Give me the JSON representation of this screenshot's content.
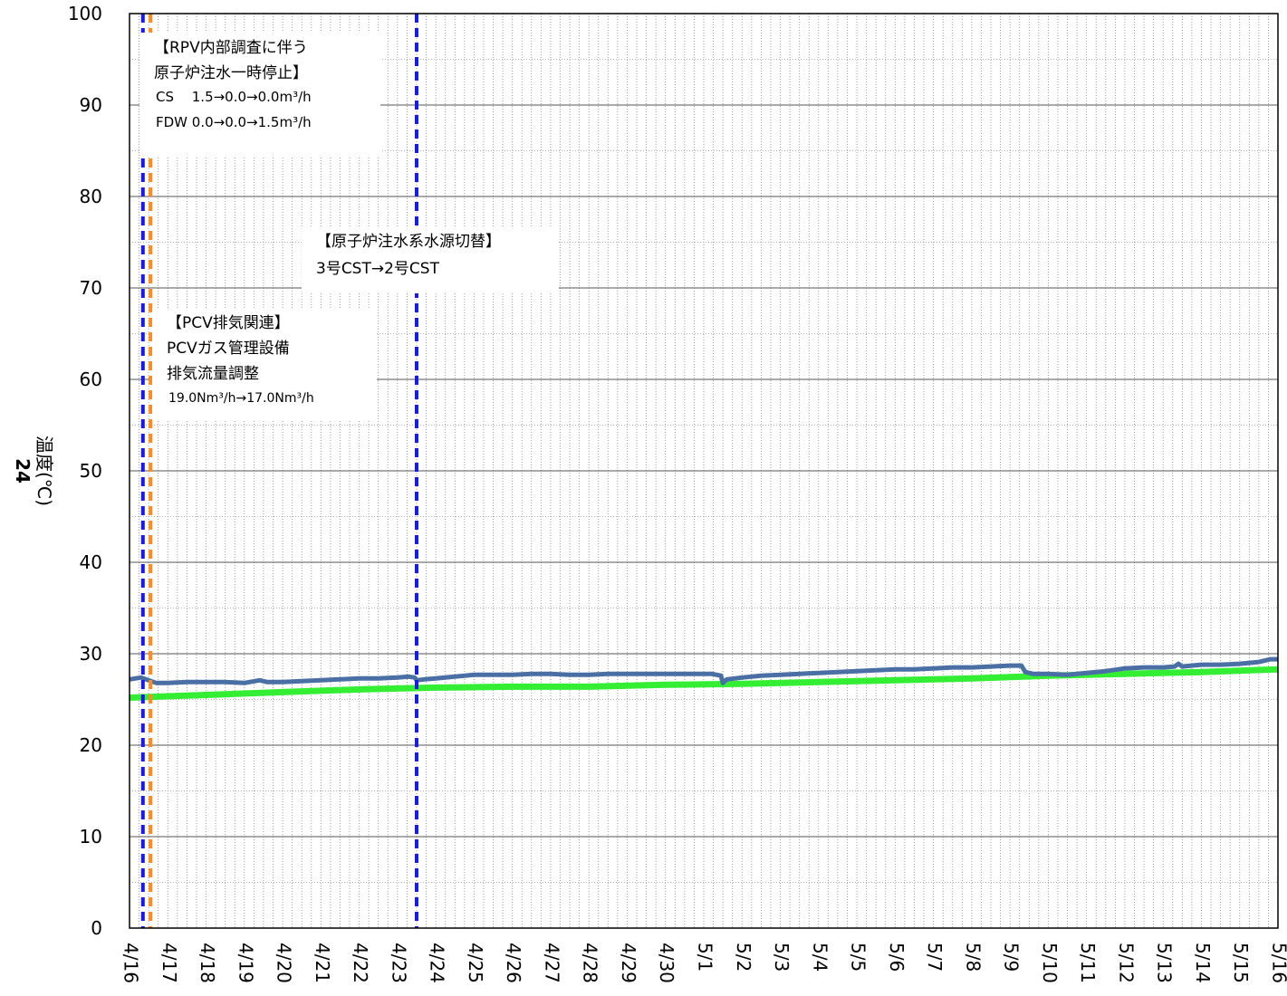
{
  "chart_data": {
    "type": "line",
    "title": "",
    "ylabel": "温度(℃)",
    "ylabel_prefix": "24",
    "ylim": [
      0,
      100
    ],
    "y_major_ticks": [
      0,
      10,
      20,
      30,
      40,
      50,
      60,
      70,
      80,
      90,
      100
    ],
    "x_categories": [
      "4/16",
      "4/17",
      "4/18",
      "4/19",
      "4/20",
      "4/21",
      "4/22",
      "4/23",
      "4/24",
      "4/25",
      "4/26",
      "4/27",
      "4/28",
      "4/29",
      "4/30",
      "5/1",
      "5/2",
      "5/3",
      "5/4",
      "5/5",
      "5/6",
      "5/7",
      "5/8",
      "5/9",
      "5/10",
      "5/11",
      "5/12",
      "5/13",
      "5/14",
      "5/15",
      "5/16"
    ],
    "grid": true,
    "series": [
      {
        "color": "#4a6fa5",
        "points": [
          [
            0.0,
            27.2
          ],
          [
            0.3,
            27.4
          ],
          [
            0.5,
            27.1
          ],
          [
            0.7,
            26.8
          ],
          [
            1.0,
            26.8
          ],
          [
            1.5,
            26.9
          ],
          [
            2.0,
            26.9
          ],
          [
            2.5,
            26.9
          ],
          [
            3.0,
            26.8
          ],
          [
            3.4,
            27.1
          ],
          [
            3.6,
            26.9
          ],
          [
            4.0,
            26.9
          ],
          [
            4.5,
            27.0
          ],
          [
            5.0,
            27.1
          ],
          [
            5.5,
            27.2
          ],
          [
            6.0,
            27.3
          ],
          [
            6.5,
            27.3
          ],
          [
            7.0,
            27.4
          ],
          [
            7.3,
            27.5
          ],
          [
            7.45,
            27.4
          ],
          [
            7.5,
            27.1
          ],
          [
            7.7,
            27.2
          ],
          [
            8.0,
            27.3
          ],
          [
            8.5,
            27.5
          ],
          [
            9.0,
            27.7
          ],
          [
            9.5,
            27.7
          ],
          [
            10.0,
            27.7
          ],
          [
            10.5,
            27.8
          ],
          [
            11.0,
            27.8
          ],
          [
            11.5,
            27.7
          ],
          [
            12.0,
            27.7
          ],
          [
            12.5,
            27.8
          ],
          [
            13.0,
            27.8
          ],
          [
            13.5,
            27.8
          ],
          [
            14.0,
            27.8
          ],
          [
            14.5,
            27.8
          ],
          [
            15.0,
            27.8
          ],
          [
            15.2,
            27.8
          ],
          [
            15.45,
            27.6
          ],
          [
            15.5,
            26.8
          ],
          [
            15.6,
            27.2
          ],
          [
            16.0,
            27.4
          ],
          [
            16.5,
            27.6
          ],
          [
            17.0,
            27.7
          ],
          [
            17.5,
            27.8
          ],
          [
            18.0,
            27.9
          ],
          [
            18.5,
            28.0
          ],
          [
            19.0,
            28.1
          ],
          [
            19.5,
            28.2
          ],
          [
            20.0,
            28.3
          ],
          [
            20.5,
            28.3
          ],
          [
            21.0,
            28.4
          ],
          [
            21.5,
            28.5
          ],
          [
            22.0,
            28.5
          ],
          [
            22.5,
            28.6
          ],
          [
            23.0,
            28.7
          ],
          [
            23.3,
            28.7
          ],
          [
            23.4,
            28.0
          ],
          [
            23.6,
            27.8
          ],
          [
            24.0,
            27.8
          ],
          [
            24.5,
            27.7
          ],
          [
            25.0,
            27.9
          ],
          [
            25.5,
            28.1
          ],
          [
            26.0,
            28.4
          ],
          [
            26.5,
            28.5
          ],
          [
            27.0,
            28.5
          ],
          [
            27.3,
            28.6
          ],
          [
            27.4,
            28.9
          ],
          [
            27.5,
            28.6
          ],
          [
            28.0,
            28.8
          ],
          [
            28.5,
            28.8
          ],
          [
            29.0,
            28.9
          ],
          [
            29.5,
            29.1
          ],
          [
            29.8,
            29.4
          ],
          [
            30.0,
            29.4
          ]
        ]
      },
      {
        "color": "#33ee33",
        "points": [
          [
            0.0,
            25.2
          ],
          [
            2.0,
            25.5
          ],
          [
            4.0,
            25.8
          ],
          [
            6.0,
            26.1
          ],
          [
            8.0,
            26.3
          ],
          [
            10.0,
            26.4
          ],
          [
            12.0,
            26.4
          ],
          [
            14.0,
            26.6
          ],
          [
            16.0,
            26.7
          ],
          [
            18.0,
            26.9
          ],
          [
            20.0,
            27.1
          ],
          [
            22.0,
            27.3
          ],
          [
            24.0,
            27.6
          ],
          [
            26.0,
            27.8
          ],
          [
            28.0,
            28.0
          ],
          [
            30.0,
            28.3
          ]
        ]
      }
    ],
    "event_lines": [
      {
        "x": 0.35,
        "color": "#1a1ae6"
      },
      {
        "x": 0.55,
        "color": "#ff8a1e"
      },
      {
        "x": 7.5,
        "color": "#1a1ae6"
      }
    ],
    "annotations": [
      {
        "lines": [
          "【RPV内部調査に伴う",
          "原子炉注水一時停止】"
        ],
        "sublines": [
          "CS　 1.5→0.0→0.0m³/h",
          "FDW  0.0→0.0→1.5m³/h"
        ]
      },
      {
        "lines": [
          "【原子炉注水系水源切替】",
          "3号CST→2号CST"
        ],
        "sublines": []
      },
      {
        "lines": [
          "【PCV排気関連】",
          "PCVガス管理設備",
          "排気流量調整"
        ],
        "sublines": [
          "19.0Nm³/h→17.0Nm³/h"
        ]
      }
    ]
  }
}
